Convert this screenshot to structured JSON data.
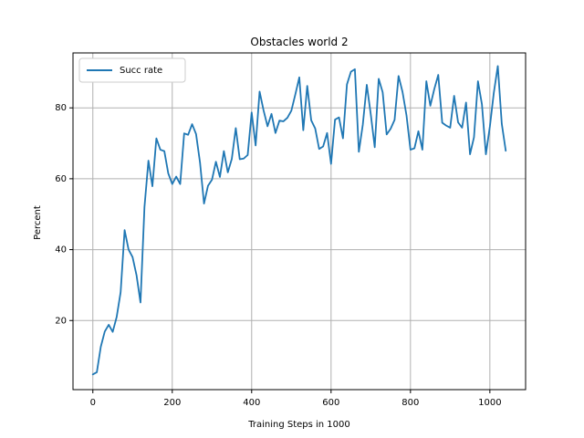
{
  "chart_data": {
    "type": "line",
    "title": "Obstacles world 2",
    "xlabel": "Training Steps in 1000",
    "ylabel": "Percent",
    "xlim": [
      -50,
      1090
    ],
    "ylim": [
      0.5,
      95.5
    ],
    "grid": true,
    "legend": "upper-left",
    "x_ticks": [
      0,
      200,
      400,
      600,
      800,
      1000
    ],
    "y_ticks": [
      20,
      40,
      60,
      80
    ],
    "x_tick_labels": [
      "0",
      "200",
      "400",
      "600",
      "800",
      "1000"
    ],
    "y_tick_labels": [
      "20",
      "40",
      "60",
      "80"
    ],
    "series": [
      {
        "name": "Succ rate",
        "color": "#1f77b4",
        "x": [
          0,
          10,
          20,
          30,
          40,
          50,
          60,
          70,
          80,
          90,
          100,
          110,
          120,
          130,
          140,
          150,
          160,
          170,
          180,
          190,
          200,
          210,
          220,
          230,
          240,
          250,
          260,
          270,
          280,
          290,
          300,
          310,
          320,
          330,
          340,
          350,
          360,
          370,
          380,
          390,
          400,
          410,
          420,
          430,
          440,
          450,
          460,
          470,
          480,
          490,
          500,
          510,
          520,
          530,
          540,
          550,
          560,
          570,
          580,
          590,
          600,
          610,
          620,
          630,
          640,
          650,
          660,
          670,
          680,
          690,
          700,
          710,
          720,
          730,
          740,
          750,
          760,
          770,
          780,
          790,
          800,
          810,
          820,
          830,
          840,
          850,
          860,
          870,
          880,
          890,
          900,
          910,
          920,
          930,
          940,
          950,
          960,
          970,
          980,
          990,
          1000,
          1010,
          1020,
          1030,
          1040
        ],
        "y": [
          4.8,
          5.4,
          12.6,
          16.9,
          18.8,
          16.8,
          21.0,
          28.0,
          45.5,
          40.0,
          37.9,
          32.8,
          25.1,
          52.0,
          65.1,
          57.9,
          71.4,
          68.2,
          67.8,
          61.5,
          58.5,
          60.6,
          58.5,
          72.8,
          72.4,
          75.4,
          72.6,
          64.5,
          53.0,
          58.0,
          59.7,
          64.8,
          60.5,
          67.8,
          61.8,
          65.6,
          74.3,
          65.5,
          65.7,
          66.7,
          78.7,
          69.4,
          84.6,
          79.3,
          74.8,
          78.3,
          72.9,
          76.4,
          76.2,
          77.2,
          79.2,
          83.8,
          88.6,
          73.7,
          86.2,
          76.5,
          74.2,
          68.4,
          69.1,
          72.9,
          64.2,
          76.7,
          77.3,
          71.4,
          86.6,
          90.2,
          90.9,
          67.6,
          75.3,
          86.5,
          78.2,
          68.9,
          88.2,
          84.4,
          72.5,
          74.1,
          76.6,
          89.0,
          84.5,
          77.9,
          68.2,
          68.6,
          73.4,
          68.2,
          87.5,
          80.6,
          85.3,
          89.3,
          75.8,
          75.0,
          74.4,
          83.4,
          75.9,
          74.4,
          81.5,
          66.9,
          71.7,
          87.5,
          81.0,
          66.9,
          74.7,
          84.3,
          91.8,
          75.5,
          67.9
        ]
      }
    ]
  }
}
